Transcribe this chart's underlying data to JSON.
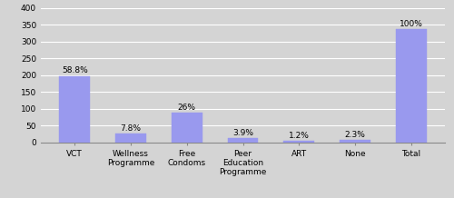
{
  "categories": [
    "VCT",
    "Wellness\nProgramme",
    "Free\nCondoms",
    "Peer\nEducation\nProgramme",
    "ART",
    "None",
    "Total"
  ],
  "values": [
    198,
    26,
    88,
    13,
    4,
    8,
    338
  ],
  "labels": [
    "58.8%",
    "7.8%",
    "26%",
    "3.9%",
    "1.2%",
    "2.3%",
    "100%"
  ],
  "bar_color": "#9999EE",
  "bar_edge_color": "#9999EE",
  "background_color": "#D4D4D4",
  "plot_bg_color": "#D4D4D4",
  "ylim": [
    0,
    400
  ],
  "yticks": [
    0,
    50,
    100,
    150,
    200,
    250,
    300,
    350,
    400
  ],
  "grid_color": "#FFFFFF",
  "label_fontsize": 6.5,
  "tick_fontsize": 6.5,
  "bar_width": 0.55,
  "figsize": [
    5.0,
    2.18
  ],
  "dpi": 100
}
